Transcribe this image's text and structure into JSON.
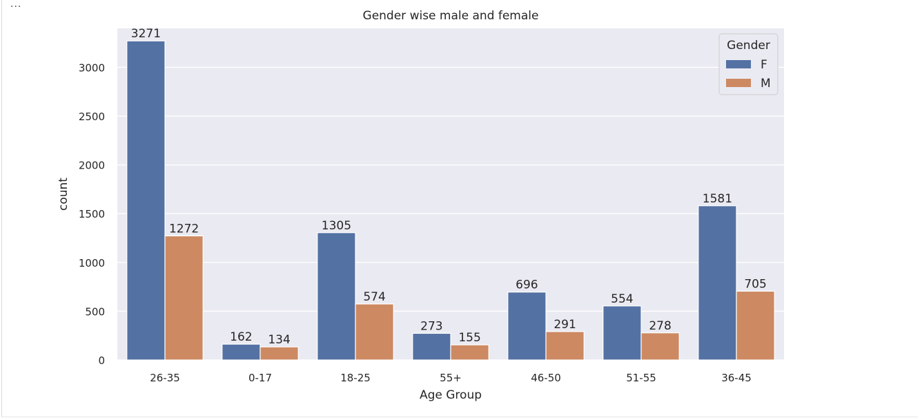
{
  "cell": {
    "ellipsis": "..."
  },
  "chart_data": {
    "type": "bar",
    "title": "Gender wise male and female",
    "xlabel": "Age Group",
    "ylabel": "count",
    "categories": [
      "26-35",
      "0-17",
      "18-25",
      "55+",
      "46-50",
      "51-55",
      "36-45"
    ],
    "series": [
      {
        "name": "F",
        "color": "#5471a3",
        "values": [
          3271,
          162,
          1305,
          273,
          696,
          554,
          1581
        ]
      },
      {
        "name": "M",
        "color": "#cd8962",
        "values": [
          1272,
          134,
          574,
          155,
          291,
          278,
          705
        ]
      }
    ],
    "ylim": [
      0,
      3400
    ],
    "yticks": [
      0,
      500,
      1000,
      1500,
      2000,
      2500,
      3000
    ],
    "grid": true,
    "legend": {
      "title": "Gender",
      "position": "top-right"
    },
    "colors": {
      "plot_bg": "#eaeaf2",
      "grid": "#ffffff"
    }
  }
}
